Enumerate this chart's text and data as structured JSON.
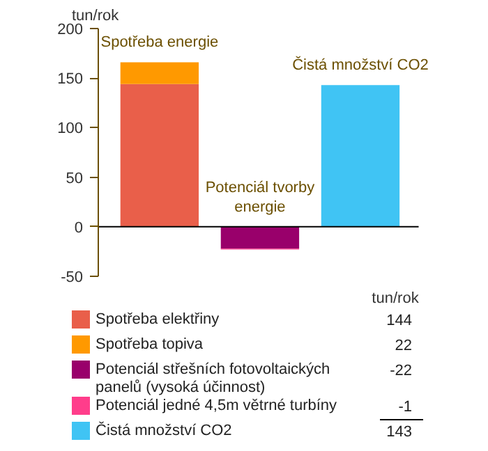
{
  "chart_data": {
    "type": "bar",
    "stacked": true,
    "ylabel": "tun/rok",
    "categories": [
      null,
      null,
      null
    ],
    "series": [
      {
        "name": "Spotřeba elektřiny",
        "color": "#e95f4a",
        "values": [
          144,
          null,
          null
        ]
      },
      {
        "name": "Spotřeba topiva",
        "color": "#ff9900",
        "values": [
          22,
          null,
          null
        ]
      },
      {
        "name": "Potenciál střešních fotovoltaických panelů (vysoká účinnost)",
        "color": "#99006b",
        "values": [
          null,
          -22,
          null
        ]
      },
      {
        "name": "Potenciál jedné 4,5m větrné turbíny",
        "color": "#ff3d8b",
        "values": [
          null,
          -1,
          null
        ]
      },
      {
        "name": "Čistá množství CO2",
        "color": "#40c4f4",
        "values": [
          null,
          null,
          143
        ]
      }
    ],
    "ylim": [
      -50,
      200
    ],
    "yticks": [
      -50,
      0,
      50,
      100,
      150,
      200
    ],
    "legend": "bottom",
    "ref_lines": [
      {
        "axis": "y",
        "value": 0,
        "color": "#000000"
      }
    ],
    "annotations": [
      "Spotřeba energie",
      "Potenciál tvorby energie",
      "Čistá množství CO2",
      "tun/rok",
      "144",
      "22",
      "-22",
      "-1",
      "143"
    ]
  }
}
